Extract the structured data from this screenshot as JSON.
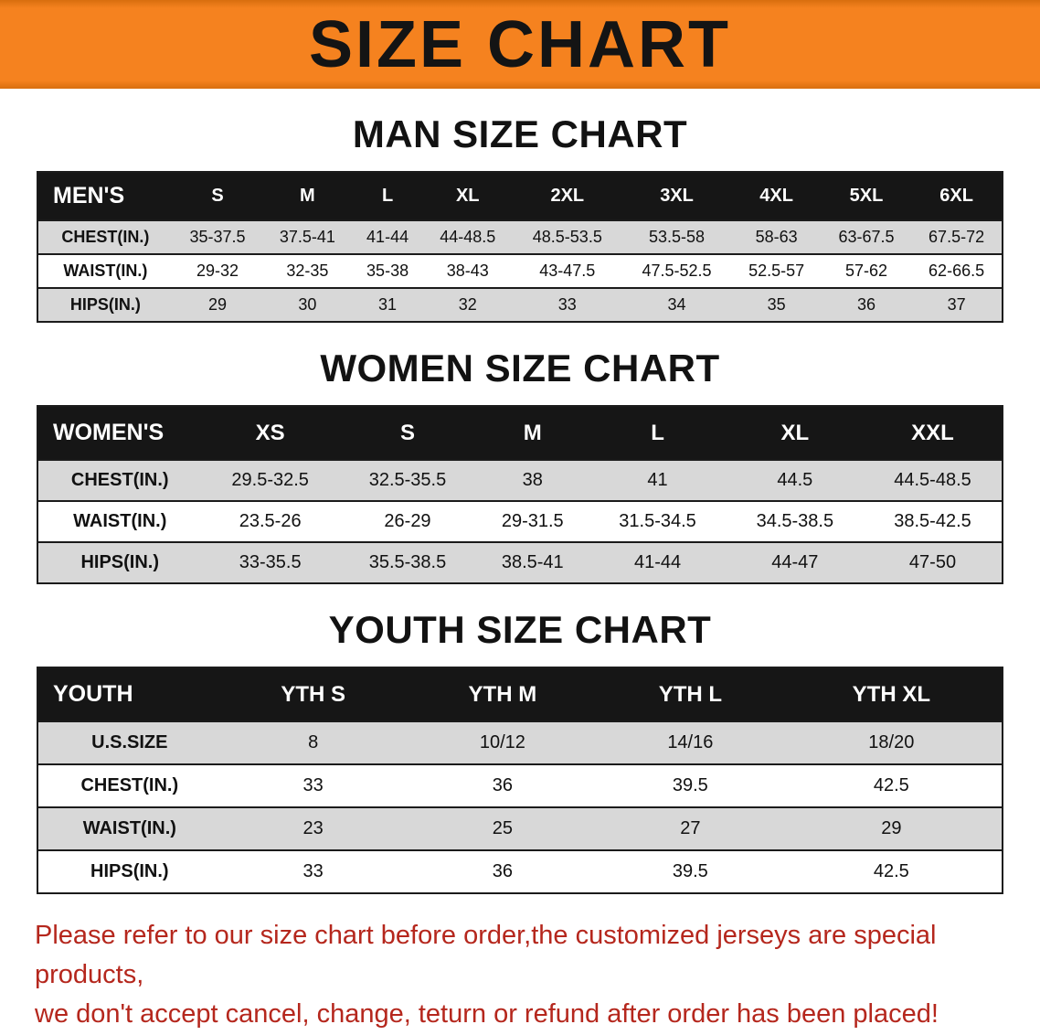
{
  "banner": {
    "title": "SIZE CHART"
  },
  "colors": {
    "banner_bg": "#f5821f",
    "table_header_bg": "#161616",
    "table_header_text": "#ffffff",
    "row_shade": "#d8d8d8",
    "note_red": "#b5271d"
  },
  "sections": [
    {
      "id": "men",
      "heading": "MAN SIZE CHART",
      "table": {
        "header": [
          "MEN'S",
          "S",
          "M",
          "L",
          "XL",
          "2XL",
          "3XL",
          "4XL",
          "5XL",
          "6XL"
        ],
        "rows": [
          [
            "CHEST(IN.)",
            "35-37.5",
            "37.5-41",
            "41-44",
            "44-48.5",
            "48.5-53.5",
            "53.5-58",
            "58-63",
            "63-67.5",
            "67.5-72"
          ],
          [
            "WAIST(IN.)",
            "29-32",
            "32-35",
            "35-38",
            "38-43",
            "43-47.5",
            "47.5-52.5",
            "52.5-57",
            "57-62",
            "62-66.5"
          ],
          [
            "HIPS(IN.)",
            "29",
            "30",
            "31",
            "32",
            "33",
            "34",
            "35",
            "36",
            "37"
          ]
        ]
      }
    },
    {
      "id": "women",
      "heading": "WOMEN SIZE CHART",
      "table": {
        "header": [
          "WOMEN'S",
          "XS",
          "S",
          "M",
          "L",
          "XL",
          "XXL"
        ],
        "rows": [
          [
            "CHEST(IN.)",
            "29.5-32.5",
            "32.5-35.5",
            "38",
            "41",
            "44.5",
            "44.5-48.5"
          ],
          [
            "WAIST(IN.)",
            "23.5-26",
            "26-29",
            "29-31.5",
            "31.5-34.5",
            "34.5-38.5",
            "38.5-42.5"
          ],
          [
            "HIPS(IN.)",
            "33-35.5",
            "35.5-38.5",
            "38.5-41",
            "41-44",
            "44-47",
            "47-50"
          ]
        ]
      }
    },
    {
      "id": "youth",
      "heading": "YOUTH SIZE CHART",
      "table": {
        "header": [
          "YOUTH",
          "YTH S",
          "YTH M",
          "YTH L",
          "YTH XL"
        ],
        "rows": [
          [
            "U.S.SIZE",
            "8",
            "10/12",
            "14/16",
            "18/20"
          ],
          [
            "CHEST(IN.)",
            "33",
            "36",
            "39.5",
            "42.5"
          ],
          [
            "WAIST(IN.)",
            "23",
            "25",
            "27",
            "29"
          ],
          [
            "HIPS(IN.)",
            "33",
            "36",
            "39.5",
            "42.5"
          ]
        ]
      }
    }
  ],
  "footer": {
    "line1": "Please refer to our size chart before order,the customized jerseys are special products,",
    "line2": "we don't accept cancel, change, teturn or refund after order has been placed!"
  }
}
